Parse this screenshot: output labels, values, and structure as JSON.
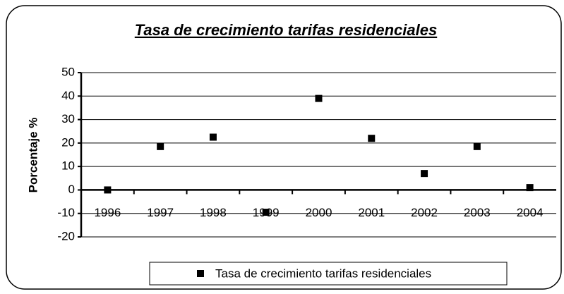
{
  "chart_data": {
    "type": "line",
    "title": "Tasa de crecimiento tarifas residenciales",
    "y_label": "Porcentaje %",
    "categories": [
      "1996",
      "1997",
      "1998",
      "1999",
      "2000",
      "2001",
      "2002",
      "2003",
      "2004"
    ],
    "series": [
      {
        "name": "Tasa de crecimiento tarifas residenciales",
        "color": "#000000",
        "values": [
          0,
          18.5,
          22.5,
          -9.5,
          39,
          22,
          7,
          18.5,
          1
        ]
      }
    ],
    "show_line": false,
    "ylim": [
      -20,
      50
    ],
    "yticks": [
      -20,
      -10,
      0,
      10,
      20,
      30,
      40,
      50
    ],
    "grid": true,
    "legend": "bottom"
  }
}
